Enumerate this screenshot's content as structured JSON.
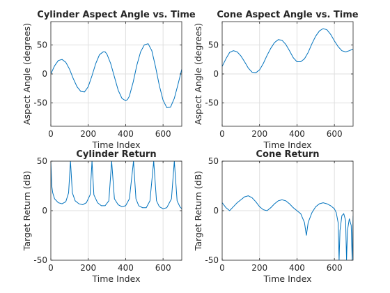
{
  "figure": {
    "background": "#ffffff"
  },
  "chart_data": [
    {
      "id": "cyl-aspect",
      "type": "line",
      "title": "Cylinder Aspect Angle vs. Time",
      "xlabel": "Time Index",
      "ylabel": "Aspect Angle (degrees)",
      "xlim": [
        0,
        700
      ],
      "ylim": [
        -90,
        90
      ],
      "xticks": [
        0,
        200,
        400,
        600
      ],
      "yticks": [
        -50,
        0,
        50
      ],
      "grid": true,
      "color": "#0072bd",
      "series": [
        {
          "x": [
            0,
            20,
            40,
            60,
            80,
            100,
            120,
            140,
            160,
            180,
            200,
            220,
            240,
            260,
            280,
            290,
            300,
            320,
            340,
            360,
            380,
            400,
            410,
            420,
            440,
            460,
            480,
            500,
            520,
            540,
            560,
            580,
            600,
            620,
            640,
            660,
            680,
            700
          ],
          "y": [
            0,
            14,
            23,
            25,
            20,
            8,
            -8,
            -22,
            -30,
            -31,
            -22,
            -3,
            18,
            33,
            38,
            38,
            34,
            18,
            -5,
            -28,
            -42,
            -46,
            -44,
            -38,
            -14,
            15,
            38,
            50,
            52,
            40,
            12,
            -20,
            -45,
            -58,
            -57,
            -42,
            -18,
            8
          ]
        }
      ]
    },
    {
      "id": "cone-aspect",
      "type": "line",
      "title": "Cone Aspect Angle vs. Time",
      "xlabel": "Time Index",
      "ylabel": "Aspect Angle (degrees)",
      "xlim": [
        0,
        700
      ],
      "ylim": [
        -90,
        90
      ],
      "xticks": [
        0,
        200,
        400,
        600
      ],
      "yticks": [
        -50,
        0,
        50
      ],
      "grid": true,
      "color": "#0072bd",
      "series": [
        {
          "x": [
            0,
            20,
            40,
            60,
            80,
            100,
            120,
            140,
            160,
            180,
            200,
            220,
            240,
            260,
            280,
            300,
            320,
            340,
            360,
            380,
            400,
            420,
            440,
            460,
            480,
            500,
            520,
            540,
            560,
            580,
            600,
            620,
            640,
            660,
            680,
            700
          ],
          "y": [
            13,
            26,
            37,
            40,
            38,
            31,
            21,
            10,
            3,
            2,
            7,
            18,
            32,
            44,
            54,
            59,
            58,
            51,
            40,
            28,
            21,
            21,
            26,
            37,
            52,
            65,
            74,
            78,
            76,
            68,
            57,
            47,
            40,
            38,
            40,
            43
          ]
        }
      ]
    },
    {
      "id": "cyl-return",
      "type": "line",
      "title": "Cylinder Return",
      "xlabel": "Time Index",
      "ylabel": "Target Return (dB)",
      "xlim": [
        0,
        700
      ],
      "ylim": [
        -50,
        50
      ],
      "xticks": [
        0,
        200,
        400,
        600
      ],
      "yticks": [
        -50,
        0,
        50
      ],
      "grid": true,
      "color": "#0072bd",
      "peaks": [
        0,
        105,
        220,
        325,
        442,
        550,
        660
      ],
      "series": [
        {
          "x": [
            0,
            5,
            10,
            20,
            40,
            60,
            80,
            95,
            105,
            115,
            130,
            150,
            170,
            190,
            210,
            220,
            230,
            250,
            270,
            290,
            310,
            325,
            340,
            360,
            380,
            400,
            420,
            442,
            455,
            470,
            490,
            510,
            530,
            550,
            565,
            580,
            600,
            620,
            645,
            660,
            675,
            690,
            700
          ],
          "y": [
            50,
            25,
            18,
            12,
            8,
            7,
            9,
            18,
            50,
            18,
            10,
            7,
            6,
            8,
            16,
            50,
            16,
            8,
            5,
            5,
            10,
            50,
            12,
            6,
            4,
            5,
            12,
            50,
            12,
            5,
            3,
            3,
            10,
            50,
            10,
            4,
            2,
            3,
            12,
            50,
            10,
            4,
            2
          ]
        }
      ]
    },
    {
      "id": "cone-return",
      "type": "line",
      "title": "Cone Return",
      "xlabel": "Time Index",
      "ylabel": "Target Return (dB)",
      "xlim": [
        0,
        700
      ],
      "ylim": [
        -50,
        50
      ],
      "xticks": [
        0,
        200,
        400,
        600
      ],
      "yticks": [
        -50,
        0,
        50
      ],
      "grid": true,
      "color": "#0072bd",
      "series": [
        {
          "x": [
            0,
            20,
            40,
            60,
            80,
            100,
            120,
            140,
            160,
            180,
            200,
            220,
            240,
            260,
            280,
            300,
            320,
            340,
            360,
            380,
            400,
            420,
            440,
            450,
            460,
            480,
            500,
            520,
            540,
            560,
            580,
            600,
            610,
            620,
            625,
            630,
            640,
            650,
            660,
            665,
            670,
            680,
            690,
            695,
            700
          ],
          "y": [
            8,
            3,
            0,
            4,
            8,
            11,
            14,
            15,
            13,
            9,
            4,
            1,
            0,
            3,
            7,
            10,
            11,
            10,
            7,
            3,
            0,
            -3,
            -12,
            -25,
            -12,
            -2,
            4,
            7,
            8,
            7,
            5,
            2,
            -2,
            -12,
            -50,
            -20,
            -5,
            -3,
            -10,
            -50,
            -20,
            -8,
            -15,
            -50,
            -5
          ]
        }
      ]
    }
  ]
}
